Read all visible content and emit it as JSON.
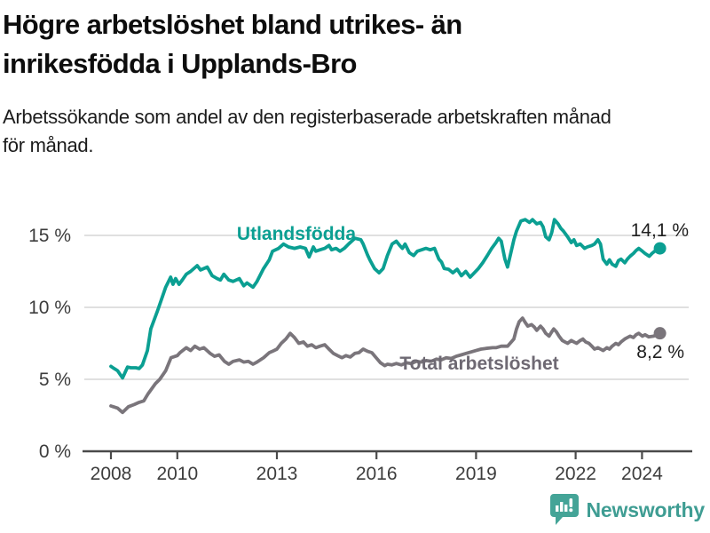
{
  "header": {
    "title_lines": [
      "Högre arbetslöshet bland utrikes- än",
      "inrikesfödda i Upplands-Bro"
    ],
    "subtitle_lines": [
      "Arbetssökande som andel av den registerbaserade arbetskraften månad",
      "för månad."
    ]
  },
  "footer": {
    "brand": "Newsworthy",
    "logo_icon": "bar-chart-speech-bubble-icon",
    "brand_color": "#3f9d93"
  },
  "chart_data": {
    "type": "line",
    "title": "Högre arbetslöshet bland utrikes- än inrikesfödda i Upplands-Bro",
    "subtitle": "Arbetssökande som andel av den registerbaserade arbetskraften månad för månad.",
    "unit": "%",
    "grid": "horizontal-only",
    "legend": "inline-series-labels",
    "x_axis": {
      "label": "",
      "ticks": [
        2008,
        2010,
        2013,
        2016,
        2019,
        2022,
        2024
      ],
      "tick_labels": [
        "2008",
        "2010",
        "2013",
        "2016",
        "2019",
        "2022",
        "2024"
      ],
      "range": [
        2007.1,
        2025.5
      ]
    },
    "y_axis": {
      "label": "",
      "ticks": [
        0,
        5,
        10,
        15
      ],
      "tick_labels": [
        "0 %",
        "5 %",
        "10 %",
        "15 %"
      ],
      "range": [
        0,
        19
      ]
    },
    "series": [
      {
        "name": "Utlandsfödda",
        "color": "#0b9f92",
        "end_label": "14,1 %",
        "end_value": 14.1,
        "points": [
          [
            2008.0,
            5.9
          ],
          [
            2008.1,
            5.75
          ],
          [
            2008.2,
            5.6
          ],
          [
            2008.35,
            5.1
          ],
          [
            2008.5,
            5.85
          ],
          [
            2008.6,
            5.8
          ],
          [
            2008.75,
            5.8
          ],
          [
            2008.85,
            5.75
          ],
          [
            2008.95,
            6.0
          ],
          [
            2009.1,
            7.0
          ],
          [
            2009.2,
            8.5
          ],
          [
            2009.4,
            9.75
          ],
          [
            2009.5,
            10.4
          ],
          [
            2009.65,
            11.4
          ],
          [
            2009.8,
            12.1
          ],
          [
            2009.87,
            11.6
          ],
          [
            2009.95,
            12.0
          ],
          [
            2010.05,
            11.6
          ],
          [
            2010.15,
            11.9
          ],
          [
            2010.27,
            12.3
          ],
          [
            2010.4,
            12.5
          ],
          [
            2010.6,
            12.9
          ],
          [
            2010.7,
            12.6
          ],
          [
            2010.9,
            12.8
          ],
          [
            2011.05,
            12.2
          ],
          [
            2011.2,
            12.0
          ],
          [
            2011.3,
            11.9
          ],
          [
            2011.4,
            12.3
          ],
          [
            2011.55,
            11.9
          ],
          [
            2011.68,
            11.8
          ],
          [
            2011.87,
            12.0
          ],
          [
            2012.0,
            11.5
          ],
          [
            2012.1,
            11.7
          ],
          [
            2012.28,
            11.4
          ],
          [
            2012.4,
            11.8
          ],
          [
            2012.6,
            12.7
          ],
          [
            2012.77,
            13.3
          ],
          [
            2012.87,
            13.9
          ],
          [
            2013.05,
            14.1
          ],
          [
            2013.2,
            14.4
          ],
          [
            2013.35,
            14.2
          ],
          [
            2013.53,
            14.1
          ],
          [
            2013.7,
            14.2
          ],
          [
            2013.86,
            14.1
          ],
          [
            2013.97,
            13.5
          ],
          [
            2014.1,
            14.2
          ],
          [
            2014.17,
            13.9
          ],
          [
            2014.3,
            14.0
          ],
          [
            2014.44,
            14.1
          ],
          [
            2014.57,
            14.3
          ],
          [
            2014.65,
            14.0
          ],
          [
            2014.78,
            14.1
          ],
          [
            2014.9,
            13.9
          ],
          [
            2015.03,
            14.1
          ],
          [
            2015.16,
            14.4
          ],
          [
            2015.35,
            14.8
          ],
          [
            2015.53,
            14.7
          ],
          [
            2015.6,
            14.4
          ],
          [
            2015.73,
            13.65
          ],
          [
            2015.8,
            13.3
          ],
          [
            2015.94,
            12.7
          ],
          [
            2016.08,
            12.4
          ],
          [
            2016.2,
            12.7
          ],
          [
            2016.33,
            13.6
          ],
          [
            2016.47,
            14.4
          ],
          [
            2016.6,
            14.6
          ],
          [
            2016.7,
            14.3
          ],
          [
            2016.78,
            14.1
          ],
          [
            2016.86,
            14.4
          ],
          [
            2016.99,
            13.8
          ],
          [
            2017.12,
            13.6
          ],
          [
            2017.23,
            13.9
          ],
          [
            2017.36,
            14.0
          ],
          [
            2017.49,
            14.1
          ],
          [
            2017.62,
            14.0
          ],
          [
            2017.75,
            14.1
          ],
          [
            2017.88,
            13.35
          ],
          [
            2017.96,
            13.15
          ],
          [
            2018.04,
            12.7
          ],
          [
            2018.17,
            12.65
          ],
          [
            2018.3,
            12.4
          ],
          [
            2018.43,
            12.65
          ],
          [
            2018.56,
            12.2
          ],
          [
            2018.69,
            12.5
          ],
          [
            2018.82,
            12.1
          ],
          [
            2018.95,
            12.4
          ],
          [
            2019.07,
            12.7
          ],
          [
            2019.2,
            13.1
          ],
          [
            2019.34,
            13.6
          ],
          [
            2019.47,
            14.1
          ],
          [
            2019.6,
            14.5
          ],
          [
            2019.68,
            14.8
          ],
          [
            2019.76,
            14.6
          ],
          [
            2019.87,
            13.35
          ],
          [
            2019.95,
            12.8
          ],
          [
            2020.03,
            13.6
          ],
          [
            2020.14,
            14.7
          ],
          [
            2020.22,
            15.3
          ],
          [
            2020.35,
            16.0
          ],
          [
            2020.48,
            16.1
          ],
          [
            2020.61,
            15.9
          ],
          [
            2020.7,
            16.1
          ],
          [
            2020.83,
            15.8
          ],
          [
            2020.94,
            15.9
          ],
          [
            2021.02,
            15.6
          ],
          [
            2021.1,
            14.9
          ],
          [
            2021.2,
            14.7
          ],
          [
            2021.28,
            15.2
          ],
          [
            2021.36,
            16.1
          ],
          [
            2021.47,
            15.8
          ],
          [
            2021.55,
            15.5
          ],
          [
            2021.63,
            15.3
          ],
          [
            2021.76,
            14.9
          ],
          [
            2021.87,
            14.5
          ],
          [
            2021.95,
            14.7
          ],
          [
            2022.03,
            14.3
          ],
          [
            2022.14,
            14.4
          ],
          [
            2022.27,
            14.1
          ],
          [
            2022.35,
            14.2
          ],
          [
            2022.49,
            14.3
          ],
          [
            2022.57,
            14.4
          ],
          [
            2022.67,
            14.7
          ],
          [
            2022.75,
            14.4
          ],
          [
            2022.83,
            13.35
          ],
          [
            2022.94,
            13.0
          ],
          [
            2023.02,
            13.3
          ],
          [
            2023.1,
            13.0
          ],
          [
            2023.21,
            12.85
          ],
          [
            2023.29,
            13.25
          ],
          [
            2023.37,
            13.35
          ],
          [
            2023.48,
            13.1
          ],
          [
            2023.56,
            13.35
          ],
          [
            2023.64,
            13.55
          ],
          [
            2023.74,
            13.75
          ],
          [
            2023.82,
            13.95
          ],
          [
            2023.9,
            14.1
          ],
          [
            2024.01,
            13.9
          ],
          [
            2024.09,
            13.75
          ],
          [
            2024.22,
            13.55
          ],
          [
            2024.3,
            13.75
          ],
          [
            2024.41,
            13.95
          ],
          [
            2024.54,
            14.1
          ]
        ]
      },
      {
        "name": "Total arbetslöshet",
        "color": "#7a757b",
        "end_label": "8,2 %",
        "end_value": 8.2,
        "points": [
          [
            2008.0,
            3.15
          ],
          [
            2008.2,
            3.0
          ],
          [
            2008.35,
            2.7
          ],
          [
            2008.53,
            3.1
          ],
          [
            2008.7,
            3.25
          ],
          [
            2008.85,
            3.4
          ],
          [
            2008.99,
            3.5
          ],
          [
            2009.12,
            4.0
          ],
          [
            2009.34,
            4.7
          ],
          [
            2009.47,
            5.0
          ],
          [
            2009.65,
            5.6
          ],
          [
            2009.81,
            6.5
          ],
          [
            2010.0,
            6.65
          ],
          [
            2010.08,
            6.85
          ],
          [
            2010.27,
            7.2
          ],
          [
            2010.4,
            7.0
          ],
          [
            2010.53,
            7.3
          ],
          [
            2010.67,
            7.1
          ],
          [
            2010.8,
            7.2
          ],
          [
            2010.99,
            6.8
          ],
          [
            2011.12,
            6.6
          ],
          [
            2011.26,
            6.7
          ],
          [
            2011.42,
            6.25
          ],
          [
            2011.55,
            6.05
          ],
          [
            2011.68,
            6.25
          ],
          [
            2011.87,
            6.35
          ],
          [
            2012.0,
            6.2
          ],
          [
            2012.14,
            6.25
          ],
          [
            2012.28,
            6.05
          ],
          [
            2012.4,
            6.2
          ],
          [
            2012.6,
            6.5
          ],
          [
            2012.77,
            6.85
          ],
          [
            2012.87,
            6.95
          ],
          [
            2013.0,
            7.1
          ],
          [
            2013.13,
            7.5
          ],
          [
            2013.27,
            7.8
          ],
          [
            2013.4,
            8.2
          ],
          [
            2013.53,
            7.9
          ],
          [
            2013.66,
            7.5
          ],
          [
            2013.8,
            7.6
          ],
          [
            2013.92,
            7.3
          ],
          [
            2014.05,
            7.4
          ],
          [
            2014.17,
            7.2
          ],
          [
            2014.3,
            7.3
          ],
          [
            2014.44,
            7.4
          ],
          [
            2014.57,
            7.1
          ],
          [
            2014.7,
            6.8
          ],
          [
            2014.83,
            6.65
          ],
          [
            2014.96,
            6.5
          ],
          [
            2015.08,
            6.65
          ],
          [
            2015.21,
            6.55
          ],
          [
            2015.35,
            6.8
          ],
          [
            2015.47,
            6.85
          ],
          [
            2015.6,
            7.1
          ],
          [
            2015.73,
            6.95
          ],
          [
            2015.86,
            6.85
          ],
          [
            2015.99,
            6.5
          ],
          [
            2016.12,
            6.15
          ],
          [
            2016.25,
            5.95
          ],
          [
            2016.33,
            6.05
          ],
          [
            2016.46,
            6.0
          ],
          [
            2016.6,
            6.1
          ],
          [
            2016.75,
            6.0
          ],
          [
            2016.9,
            6.15
          ],
          [
            2017.05,
            6.1
          ],
          [
            2017.2,
            6.25
          ],
          [
            2017.35,
            6.2
          ],
          [
            2017.5,
            6.3
          ],
          [
            2017.65,
            6.25
          ],
          [
            2017.8,
            6.4
          ],
          [
            2017.95,
            6.35
          ],
          [
            2018.1,
            6.5
          ],
          [
            2018.25,
            6.45
          ],
          [
            2018.4,
            6.6
          ],
          [
            2018.55,
            6.7
          ],
          [
            2018.7,
            6.8
          ],
          [
            2018.85,
            6.9
          ],
          [
            2019.0,
            7.0
          ],
          [
            2019.15,
            7.1
          ],
          [
            2019.3,
            7.15
          ],
          [
            2019.5,
            7.2
          ],
          [
            2019.6,
            7.2
          ],
          [
            2019.76,
            7.3
          ],
          [
            2019.95,
            7.3
          ],
          [
            2020.14,
            7.8
          ],
          [
            2020.22,
            8.5
          ],
          [
            2020.3,
            9.0
          ],
          [
            2020.4,
            9.25
          ],
          [
            2020.48,
            8.95
          ],
          [
            2020.56,
            8.7
          ],
          [
            2020.67,
            8.8
          ],
          [
            2020.75,
            8.65
          ],
          [
            2020.83,
            8.4
          ],
          [
            2020.94,
            8.7
          ],
          [
            2021.02,
            8.5
          ],
          [
            2021.1,
            8.2
          ],
          [
            2021.2,
            8.0
          ],
          [
            2021.28,
            8.3
          ],
          [
            2021.34,
            8.5
          ],
          [
            2021.42,
            8.3
          ],
          [
            2021.5,
            8.0
          ],
          [
            2021.6,
            7.7
          ],
          [
            2021.68,
            7.6
          ],
          [
            2021.76,
            7.5
          ],
          [
            2021.87,
            7.7
          ],
          [
            2021.95,
            7.6
          ],
          [
            2022.03,
            7.5
          ],
          [
            2022.14,
            7.7
          ],
          [
            2022.22,
            7.8
          ],
          [
            2022.3,
            7.6
          ],
          [
            2022.4,
            7.5
          ],
          [
            2022.49,
            7.3
          ],
          [
            2022.57,
            7.1
          ],
          [
            2022.67,
            7.2
          ],
          [
            2022.75,
            7.1
          ],
          [
            2022.83,
            7.0
          ],
          [
            2022.94,
            7.2
          ],
          [
            2023.02,
            7.1
          ],
          [
            2023.1,
            7.3
          ],
          [
            2023.21,
            7.5
          ],
          [
            2023.29,
            7.4
          ],
          [
            2023.37,
            7.6
          ],
          [
            2023.48,
            7.8
          ],
          [
            2023.56,
            7.9
          ],
          [
            2023.64,
            8.0
          ],
          [
            2023.74,
            7.9
          ],
          [
            2023.82,
            8.1
          ],
          [
            2023.9,
            8.2
          ],
          [
            2024.01,
            8.0
          ],
          [
            2024.09,
            8.1
          ],
          [
            2024.2,
            7.95
          ],
          [
            2024.35,
            8.0
          ],
          [
            2024.45,
            8.1
          ],
          [
            2024.54,
            8.2
          ]
        ]
      }
    ]
  }
}
